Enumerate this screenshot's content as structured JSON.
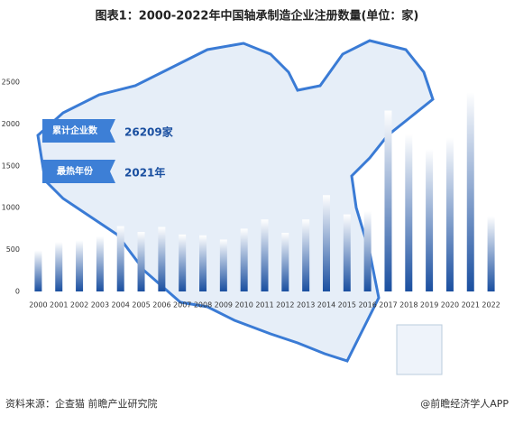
{
  "chart_data": {
    "type": "bar",
    "title": "图表1：2000-2022年中国轴承制造企业注册数量(单位：家)",
    "categories": [
      "2000",
      "2001",
      "2002",
      "2003",
      "2004",
      "2005",
      "2006",
      "2007",
      "2008",
      "2009",
      "2010",
      "2011",
      "2012",
      "2013",
      "2014",
      "2015",
      "2016",
      "2017",
      "2018",
      "2019",
      "2020",
      "2021",
      "2022"
    ],
    "values": [
      490,
      590,
      610,
      660,
      780,
      710,
      770,
      680,
      670,
      620,
      750,
      860,
      700,
      860,
      1150,
      920,
      960,
      2160,
      1880,
      1700,
      1840,
      2380,
      900
    ],
    "color": "#1a4fa0",
    "ylim": [
      0,
      2500
    ],
    "yticks": [
      0,
      500,
      1000,
      1500,
      2000,
      2500
    ],
    "grid": false,
    "annotations": [
      {
        "label": "累计企业数",
        "text": "26209家"
      },
      {
        "label": "最热年份",
        "text": "2021年"
      }
    ],
    "source": "资料来源：企查猫 前瞻产业研究院",
    "credit": "@前瞻经济学人APP"
  }
}
